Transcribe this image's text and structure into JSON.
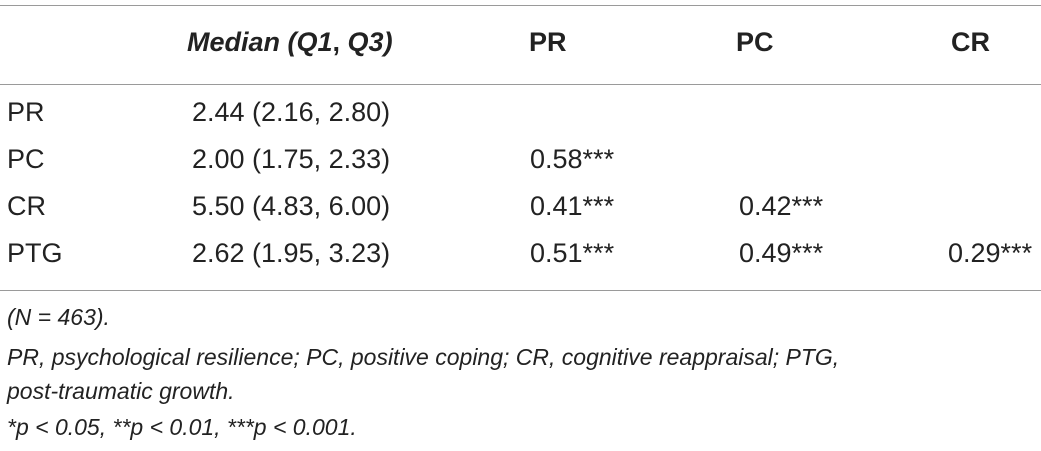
{
  "table": {
    "headers": {
      "median_part1": "Median (Q1",
      "median_comma": ",",
      "median_part2": " Q3)",
      "pr": "PR",
      "pc": "PC",
      "cr": "CR"
    },
    "rows": [
      {
        "label": "PR",
        "median": "2.44 (2.16, 2.80)",
        "pr": "",
        "pc": "",
        "cr": ""
      },
      {
        "label": "PC",
        "median": "2.00 (1.75, 2.33)",
        "pr": "0.58***",
        "pc": "",
        "cr": ""
      },
      {
        "label": "CR",
        "median": "5.50 (4.83, 6.00)",
        "pr": "0.41***",
        "pc": "0.42***",
        "cr": ""
      },
      {
        "label": "PTG",
        "median": "2.62 (1.95, 3.23)",
        "pr": "0.51***",
        "pc": "0.49***",
        "cr": "0.29***"
      }
    ]
  },
  "notes": {
    "sample": "(N = 463).",
    "abbrev_line1": "PR, psychological resilience; PC, positive coping; CR, cognitive reappraisal; PTG,",
    "abbrev_line2": "post-traumatic growth.",
    "significance": "*p < 0.05, **p < 0.01, ***p < 0.001."
  }
}
